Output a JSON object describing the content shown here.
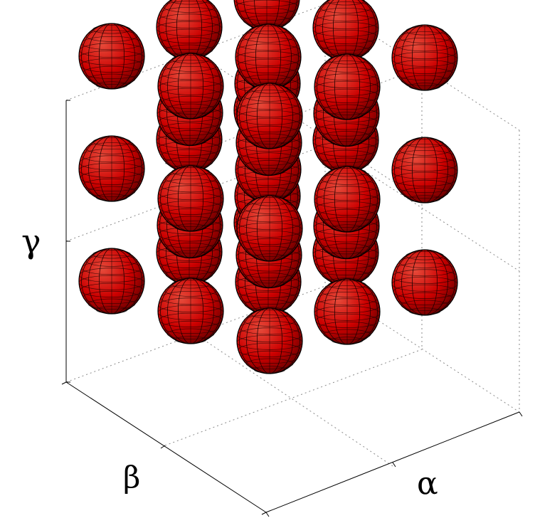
{
  "axes": {
    "alpha_label": "α",
    "beta_label": "β",
    "gamma_label": "γ"
  },
  "colors": {
    "sphere_fill": "#cc0000",
    "sphere_highlight": "#e64a3a",
    "sphere_shadow": "#6e0000",
    "mesh_line": "#1a0000",
    "box_dotted": "#8a8a8a",
    "axis_line": "#000000"
  },
  "lattice": {
    "type": "body-centered cubic",
    "corner_count": 27,
    "center_count": 8
  }
}
